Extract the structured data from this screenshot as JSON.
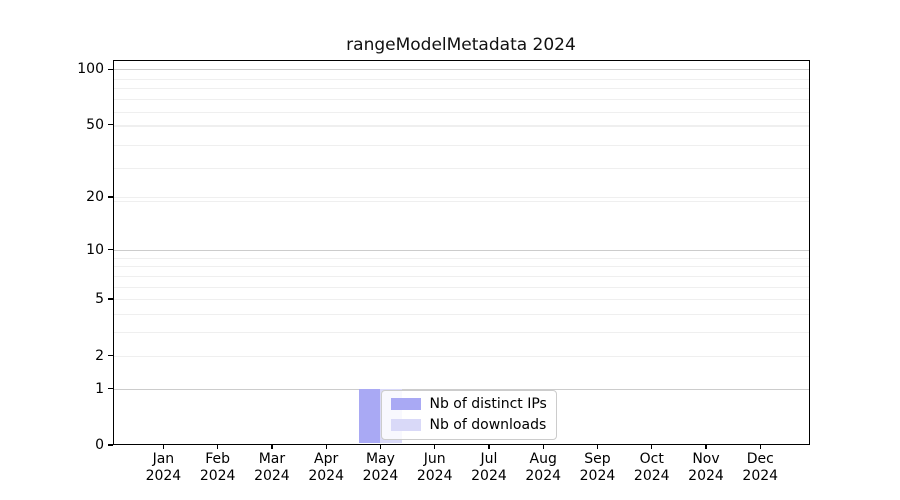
{
  "chart_data": {
    "type": "bar",
    "title": "rangeModelMetadata 2024",
    "x_categories": [
      "Jan",
      "Feb",
      "Mar",
      "Apr",
      "May",
      "Jun",
      "Jul",
      "Aug",
      "Sep",
      "Oct",
      "Nov",
      "Dec"
    ],
    "x_year_label": "2024",
    "y_ticks": [
      0,
      1,
      2,
      5,
      10,
      20,
      50,
      100
    ],
    "y_scale": "log10(1+x)",
    "y_axis_max": 112,
    "grid": true,
    "y_major_grid_levels": [
      1,
      10,
      100
    ],
    "y_minor_grid_levels": [
      2,
      3,
      4,
      5,
      6,
      7,
      8,
      9,
      19,
      20,
      29,
      39,
      49,
      50,
      59,
      69,
      79,
      89
    ],
    "series": [
      {
        "name": "Nb of distinct IPs",
        "color": "#a9a9f4",
        "values": [
          0,
          0,
          0,
          0,
          1,
          0,
          0,
          0,
          0,
          0,
          0,
          0
        ]
      },
      {
        "name": "Nb of downloads",
        "color": "#d9d9f8",
        "values": [
          0,
          0,
          0,
          0,
          1,
          0,
          0,
          0,
          0,
          0,
          0,
          0
        ]
      }
    ],
    "legend": {
      "entries": [
        "Nb of distinct IPs",
        "Nb of downloads"
      ],
      "position": "lower-center"
    }
  },
  "colors": {
    "background": "#ffffff",
    "axis": "#000000",
    "grid_major": "#cccccc",
    "grid_minor": "#efefef",
    "legend_border": "#cccccc",
    "text": "#000000"
  }
}
